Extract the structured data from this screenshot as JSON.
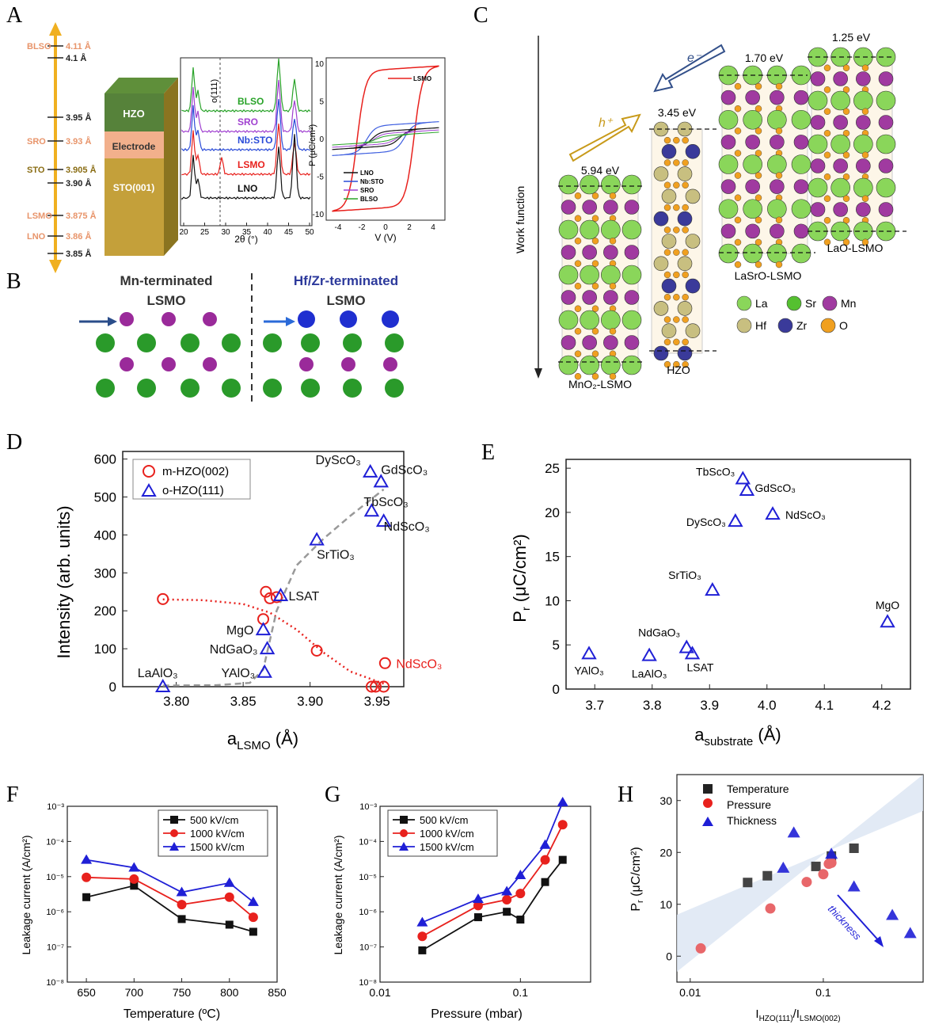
{
  "panel_labels": {
    "A": "A",
    "B": "B",
    "C": "C",
    "D": "D",
    "E": "E",
    "F": "F",
    "G": "G",
    "H": "H"
  },
  "colors": {
    "red": "#e8211d",
    "blue": "#1f1fd6",
    "gray": "#999999",
    "gold": "#f0b020",
    "salmon": "#e8946a"
  },
  "panelA": {
    "scale": [
      {
        "left": "BLSO",
        "right": "4.11 Å"
      },
      {
        "left": "",
        "right": "4.1 Å"
      },
      {
        "left": "",
        "right": "3.95 Å"
      },
      {
        "left": "SRO",
        "right": "3.93 Å"
      },
      {
        "left": "STO",
        "right": "3.905 Å"
      },
      {
        "left": "",
        "right": "3.90 Å"
      },
      {
        "left": "LSMO",
        "right": "3.875 Å"
      },
      {
        "left": "LNO",
        "right": "3.86 Å"
      },
      {
        "left": "",
        "right": "3.85 Å"
      }
    ],
    "stack": {
      "top": "HZO",
      "mid": "Electrode",
      "bottom": "STO(001)"
    },
    "xrd": {
      "xlabel": "2θ (°)",
      "peak": "o(111)",
      "xticks": [
        "20",
        "25",
        "30",
        "35",
        "40",
        "45",
        "50"
      ],
      "labels": [
        "BLSO",
        "SRO",
        "Nb:STO",
        "LSMO",
        "LNO"
      ]
    },
    "pv": {
      "ylabel": "P (μC/cm²)",
      "xlabel": "V (V)",
      "xticks": [
        "-4",
        "-2",
        "0",
        "2",
        "4"
      ],
      "yticks": [
        "10",
        "5",
        "0",
        "-5",
        "-10"
      ],
      "legend": [
        "LSMO",
        "LNO",
        "Nb:STO",
        "SRO",
        "BLSO"
      ]
    }
  },
  "panelB": {
    "left_title": "Mn-terminated",
    "left_sub": "LSMO",
    "right_title": "Hf/Zr-terminated",
    "right_sub": "LSMO"
  },
  "panelC": {
    "axis": "Work function",
    "structures": [
      {
        "name": "MnO₂-LSMO",
        "energy": "5.94 eV"
      },
      {
        "name": "HZO",
        "energy": "3.45 eV"
      },
      {
        "name": "LaSrO-LSMO",
        "energy": "1.70 eV"
      },
      {
        "name": "LaO-LSMO",
        "energy": "1.25 eV"
      }
    ],
    "hole": "h⁺",
    "electron": "e⁻",
    "legend": [
      "La",
      "Sr",
      "Mn",
      "Hf",
      "Zr",
      "O"
    ]
  },
  "chart_data": [
    {
      "id": "D",
      "type": "scatter",
      "xlabel": "aLSMO (Å)",
      "ylabel": "Intensity (arb. units)",
      "xlim": [
        3.76,
        3.97
      ],
      "ylim": [
        0,
        620
      ],
      "xticks": [
        3.8,
        3.85,
        3.9,
        3.95
      ],
      "yticks": [
        0,
        100,
        200,
        300,
        400,
        500,
        600
      ],
      "legend": [
        "m-HZO(002)",
        "o-HZO(111)"
      ],
      "series": [
        {
          "name": "m-HZO(002)",
          "marker": "circle",
          "points": [
            [
              3.79,
              231
            ],
            [
              3.865,
              178
            ],
            [
              3.867,
              250
            ],
            [
              3.87,
              233
            ],
            [
              3.875,
              236
            ],
            [
              3.905,
              95
            ],
            [
              3.946,
              0
            ],
            [
              3.949,
              0
            ],
            [
              3.955,
              0
            ],
            [
              3.956,
              62
            ]
          ]
        },
        {
          "name": "o-HZO(111)",
          "marker": "triangle",
          "points": [
            [
              3.79,
              0
            ],
            [
              3.866,
              38
            ],
            [
              3.868,
              100
            ],
            [
              3.865,
              150
            ],
            [
              3.878,
              240
            ],
            [
              3.905,
              387
            ],
            [
              3.946,
              463
            ],
            [
              3.955,
              436
            ],
            [
              3.945,
              566
            ],
            [
              3.953,
              540
            ]
          ]
        }
      ],
      "point_labels": [
        {
          "text": "LaAlO₃",
          "x": 3.79,
          "y": 0,
          "color": "black"
        },
        {
          "text": "YAlO₃",
          "x": 3.866,
          "y": 38,
          "color": "black"
        },
        {
          "text": "NdGaO₃",
          "x": 3.868,
          "y": 100,
          "color": "black"
        },
        {
          "text": "MgO",
          "x": 3.865,
          "y": 150,
          "color": "black"
        },
        {
          "text": "LSAT",
          "x": 3.878,
          "y": 240,
          "color": "black"
        },
        {
          "text": "SrTiO₃",
          "x": 3.905,
          "y": 387,
          "color": "black"
        },
        {
          "text": "TbScO₃",
          "x": 3.946,
          "y": 463,
          "color": "black"
        },
        {
          "text": "NdScO₃",
          "x": 3.955,
          "y": 436,
          "color": "black"
        },
        {
          "text": "DyScO₃",
          "x": 3.945,
          "y": 566,
          "color": "black"
        },
        {
          "text": "GdScO₃",
          "x": 3.953,
          "y": 540,
          "color": "black"
        },
        {
          "text": "NdScO₃",
          "x": 3.956,
          "y": 62,
          "color": "red"
        }
      ],
      "fits": [
        {
          "name": "m-HZO fit",
          "color": "red",
          "style": "dotted",
          "points": [
            [
              3.79,
              230
            ],
            [
              3.82,
              228
            ],
            [
              3.85,
              218
            ],
            [
              3.87,
              195
            ],
            [
              3.89,
              150
            ],
            [
              3.91,
              90
            ],
            [
              3.93,
              40
            ],
            [
              3.955,
              8
            ]
          ]
        },
        {
          "name": "o-HZO fit",
          "color": "gray",
          "style": "dashed",
          "points": [
            [
              3.79,
              3
            ],
            [
              3.83,
              4
            ],
            [
              3.855,
              10
            ],
            [
              3.865,
              45
            ],
            [
              3.875,
              200
            ],
            [
              3.89,
              320
            ],
            [
              3.91,
              390
            ],
            [
              3.93,
              450
            ],
            [
              3.955,
              520
            ]
          ]
        }
      ]
    },
    {
      "id": "E",
      "type": "scatter",
      "xlabel": "asubstrate (Å)",
      "ylabel": "Pr (μC/cm²)",
      "xlim": [
        3.65,
        4.25
      ],
      "ylim": [
        0,
        26
      ],
      "xticks": [
        3.7,
        3.8,
        3.9,
        4.0,
        4.1,
        4.2
      ],
      "yticks": [
        0,
        5,
        10,
        15,
        20,
        25
      ],
      "points": [
        {
          "label": "YAlO₃",
          "x": 3.69,
          "y": 4
        },
        {
          "label": "LaAlO₃",
          "x": 3.795,
          "y": 3.8
        },
        {
          "label": "NdGaO₃",
          "x": 3.86,
          "y": 4.7
        },
        {
          "label": "LSAT",
          "x": 3.87,
          "y": 4
        },
        {
          "label": "SrTiO₃",
          "x": 3.905,
          "y": 11.2
        },
        {
          "label": "DyScO₃",
          "x": 3.945,
          "y": 19
        },
        {
          "label": "TbScO₃",
          "x": 3.958,
          "y": 23.8
        },
        {
          "label": "GdScO₃",
          "x": 3.965,
          "y": 22.5
        },
        {
          "label": "NdScO₃",
          "x": 4.01,
          "y": 19.8
        },
        {
          "label": "MgO",
          "x": 4.21,
          "y": 7.6
        }
      ]
    },
    {
      "id": "F",
      "type": "line",
      "xlabel": "Temperature (ºC)",
      "ylabel": "Leakage current (A/cm²)",
      "xlim": [
        630,
        850
      ],
      "ylog": [
        -8,
        -3
      ],
      "xticks": [
        650,
        700,
        750,
        800,
        850
      ],
      "yticks": [
        "10⁻⁸",
        "10⁻⁷",
        "10⁻⁶",
        "10⁻⁵",
        "10⁻⁴",
        "10⁻³"
      ],
      "x": [
        650,
        700,
        750,
        800,
        825
      ],
      "series": [
        {
          "name": "500 kV/cm",
          "values": [
            2.6e-06,
            5.5e-06,
            6.2e-07,
            4.3e-07,
            2.7e-07
          ]
        },
        {
          "name": "1000 kV/cm",
          "values": [
            9.5e-06,
            8.5e-06,
            1.6e-06,
            2.6e-06,
            7e-07
          ]
        },
        {
          "name": "1500 kV/cm",
          "values": [
            3e-05,
            1.8e-05,
            3.6e-06,
            6.6e-06,
            1.9e-06
          ]
        }
      ]
    },
    {
      "id": "G",
      "type": "line",
      "xlabel": "Pressure (mbar)",
      "ylabel": "Leakage current (A/cm²)",
      "xlog": [
        -2,
        -0.5
      ],
      "ylog": [
        -8,
        -3
      ],
      "xticks": [
        "0.01",
        "0.1"
      ],
      "yticks": [
        "10⁻⁸",
        "10⁻⁷",
        "10⁻⁶",
        "10⁻⁵",
        "10⁻⁴",
        "10⁻³"
      ],
      "x": [
        0.02,
        0.05,
        0.08,
        0.1,
        0.15,
        0.2
      ],
      "series": [
        {
          "name": "500 kV/cm",
          "values": [
            8e-08,
            7e-07,
            1e-06,
            6e-07,
            7e-06,
            3e-05
          ]
        },
        {
          "name": "1000 kV/cm",
          "values": [
            2e-07,
            1.5e-06,
            2.2e-06,
            3.3e-06,
            3e-05,
            0.0003
          ]
        },
        {
          "name": "1500 kV/cm",
          "values": [
            5e-07,
            2.3e-06,
            3.8e-06,
            1.1e-05,
            8e-05,
            0.0013
          ]
        }
      ]
    },
    {
      "id": "H",
      "type": "scatter",
      "xlabel": "IHZO(111)/ILSMO(002)",
      "ylabel": "Pr (μC/cm²)",
      "xlog": [
        -2.1,
        -0.25
      ],
      "ylim": [
        -5,
        35
      ],
      "xticks": [
        "0.01",
        "0.1"
      ],
      "yticks": [
        0,
        10,
        20,
        30
      ],
      "annotation": "thickness",
      "series": [
        {
          "name": "Temperature",
          "marker": "square",
          "points": [
            [
              0.027,
              14.2
            ],
            [
              0.038,
              15.5
            ],
            [
              0.088,
              17.3
            ],
            [
              0.115,
              19.3
            ],
            [
              0.17,
              20.8
            ]
          ]
        },
        {
          "name": "Pressure",
          "marker": "circle",
          "points": [
            [
              0.012,
              1.5
            ],
            [
              0.04,
              9.2
            ],
            [
              0.075,
              14.3
            ],
            [
              0.1,
              15.8
            ],
            [
              0.11,
              17.8
            ],
            [
              0.115,
              18
            ]
          ]
        },
        {
          "name": "Thickness",
          "marker": "triangle",
          "points": [
            [
              0.05,
              17
            ],
            [
              0.06,
              23.8
            ],
            [
              0.115,
              19.7
            ],
            [
              0.17,
              13.4
            ],
            [
              0.33,
              7.9
            ],
            [
              0.45,
              4.4
            ]
          ]
        }
      ]
    }
  ]
}
